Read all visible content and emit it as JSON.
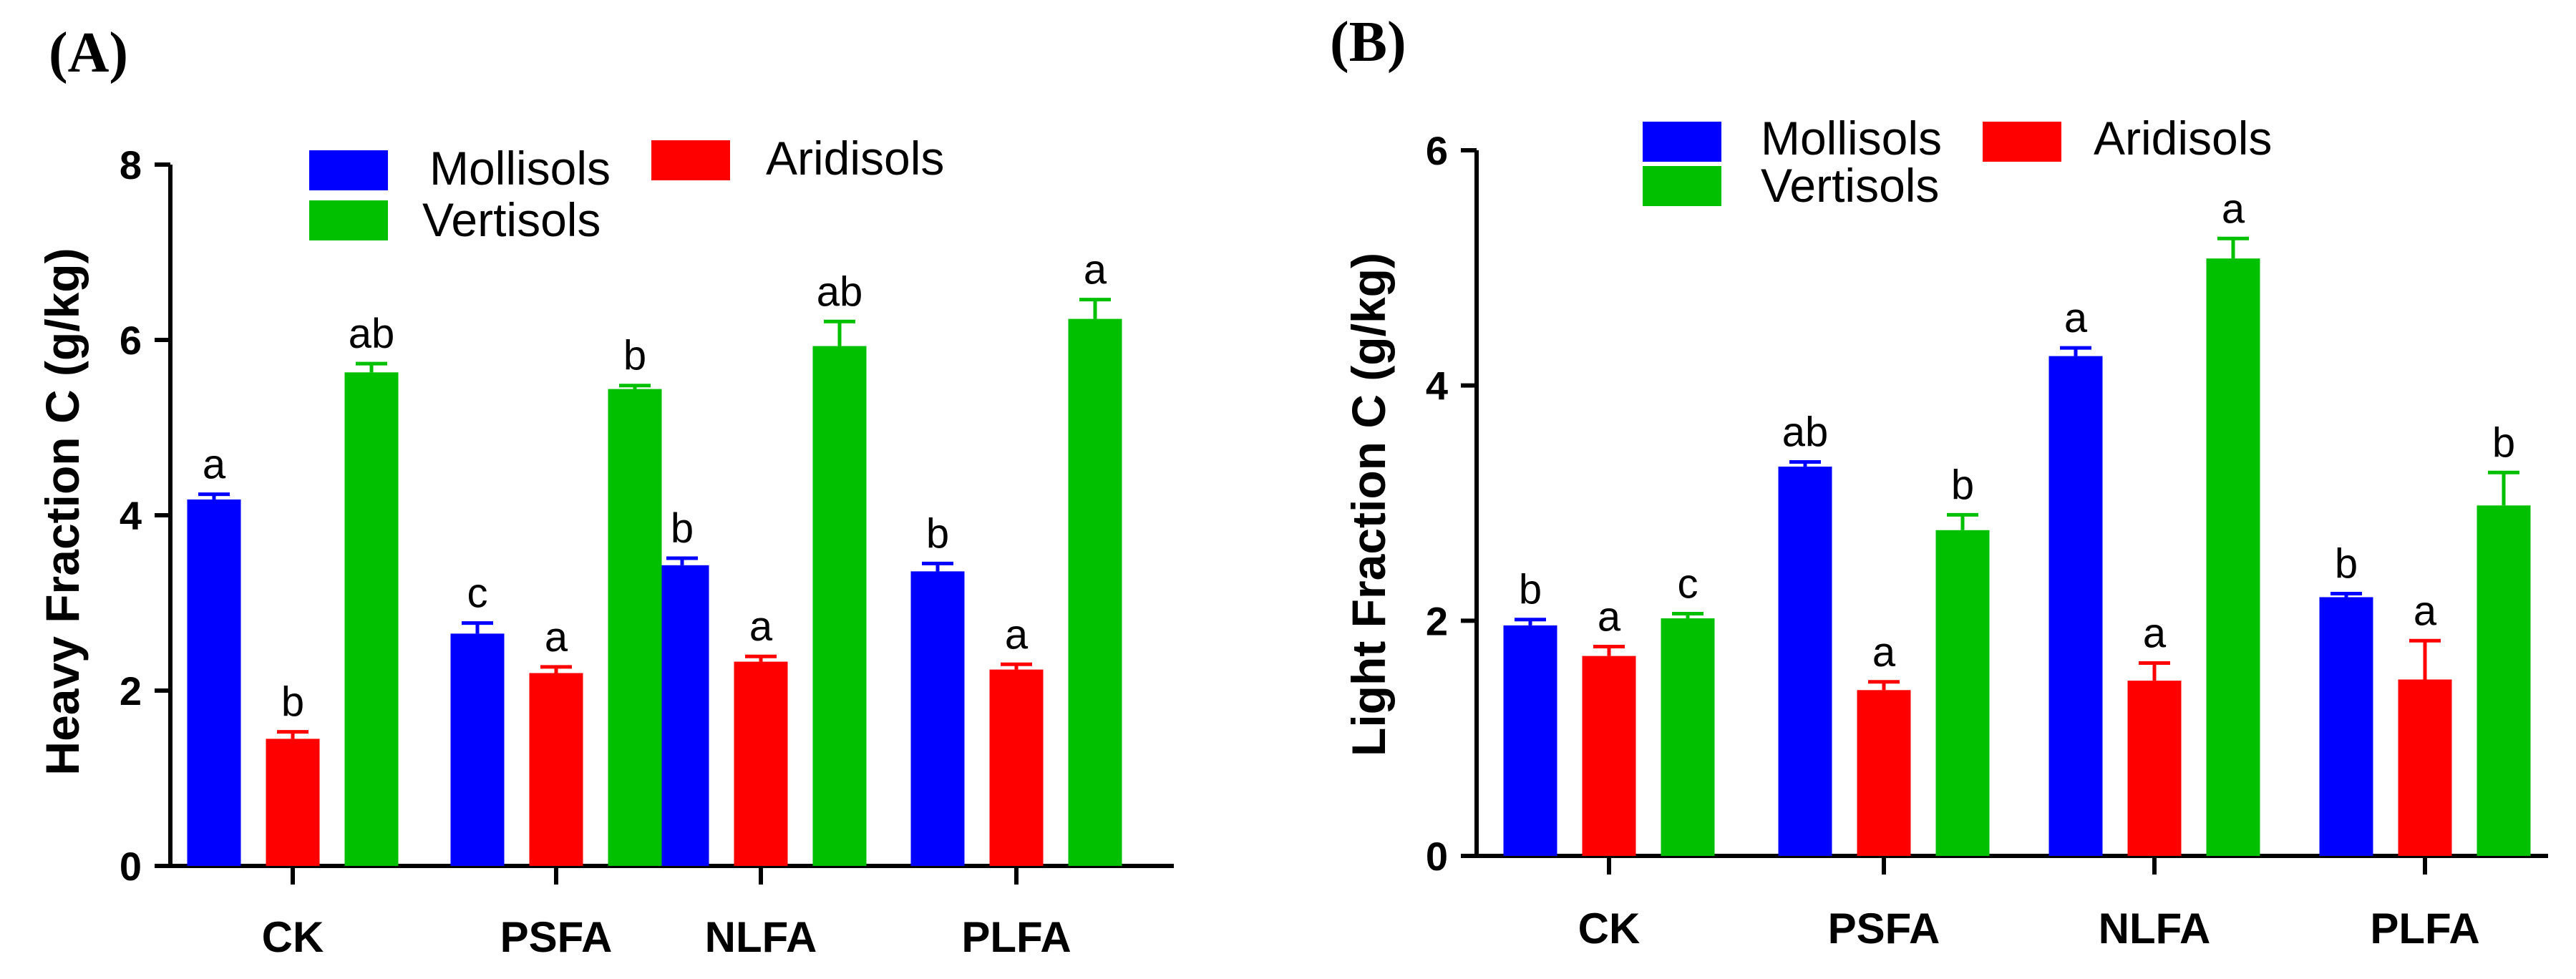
{
  "chart_data": [
    {
      "type": "bar",
      "panel_label": "(A)",
      "ylabel": "Heavy Fraction C (g/kg)",
      "xlabel": "",
      "ylim": [
        0,
        8
      ],
      "yticks": [
        "0",
        "2",
        "4",
        "6",
        "8"
      ],
      "categories": [
        "CK",
        "PSFA",
        "NLFA",
        "PLFA"
      ],
      "legend_placement": "top",
      "series": [
        {
          "name": "Mollisols",
          "color": "#0000ff",
          "values": [
            4.18,
            2.65,
            3.43,
            3.36
          ],
          "errors": [
            0.06,
            0.12,
            0.08,
            0.09
          ],
          "letters": [
            "a",
            "c",
            "b",
            "b"
          ]
        },
        {
          "name": "Aridisols",
          "color": "#ff0000",
          "values": [
            1.45,
            2.2,
            2.33,
            2.24
          ],
          "errors": [
            0.08,
            0.07,
            0.06,
            0.06
          ],
          "letters": [
            "b",
            "a",
            "a",
            "a"
          ]
        },
        {
          "name": "Vertisols",
          "color": "#00c000",
          "values": [
            5.63,
            5.44,
            5.93,
            6.24
          ],
          "errors": [
            0.1,
            0.04,
            0.28,
            0.22
          ],
          "letters": [
            "ab",
            "b",
            "ab",
            "a"
          ]
        }
      ]
    },
    {
      "type": "bar",
      "panel_label": "(B)",
      "ylabel": "Light Fraction C (g/kg)",
      "xlabel": "",
      "ylim": [
        0,
        6
      ],
      "yticks": [
        "0",
        "2",
        "4",
        "6"
      ],
      "categories": [
        "CK",
        "PSFA",
        "NLFA",
        "PLFA"
      ],
      "legend_placement": "top",
      "series": [
        {
          "name": "Mollisols",
          "color": "#0000ff",
          "values": [
            1.96,
            3.31,
            4.25,
            2.2
          ],
          "errors": [
            0.05,
            0.04,
            0.07,
            0.03
          ],
          "letters": [
            "b",
            "ab",
            "a",
            "b"
          ]
        },
        {
          "name": "Aridisols",
          "color": "#ff0000",
          "values": [
            1.7,
            1.41,
            1.49,
            1.5
          ],
          "errors": [
            0.08,
            0.07,
            0.15,
            0.33
          ],
          "letters": [
            "a",
            "a",
            "a",
            "a"
          ]
        },
        {
          "name": "Vertisols",
          "color": "#00c000",
          "values": [
            2.02,
            2.77,
            5.08,
            2.98
          ],
          "errors": [
            0.04,
            0.13,
            0.17,
            0.28
          ],
          "letters": [
            "c",
            "b",
            "a",
            "b"
          ]
        }
      ]
    }
  ]
}
